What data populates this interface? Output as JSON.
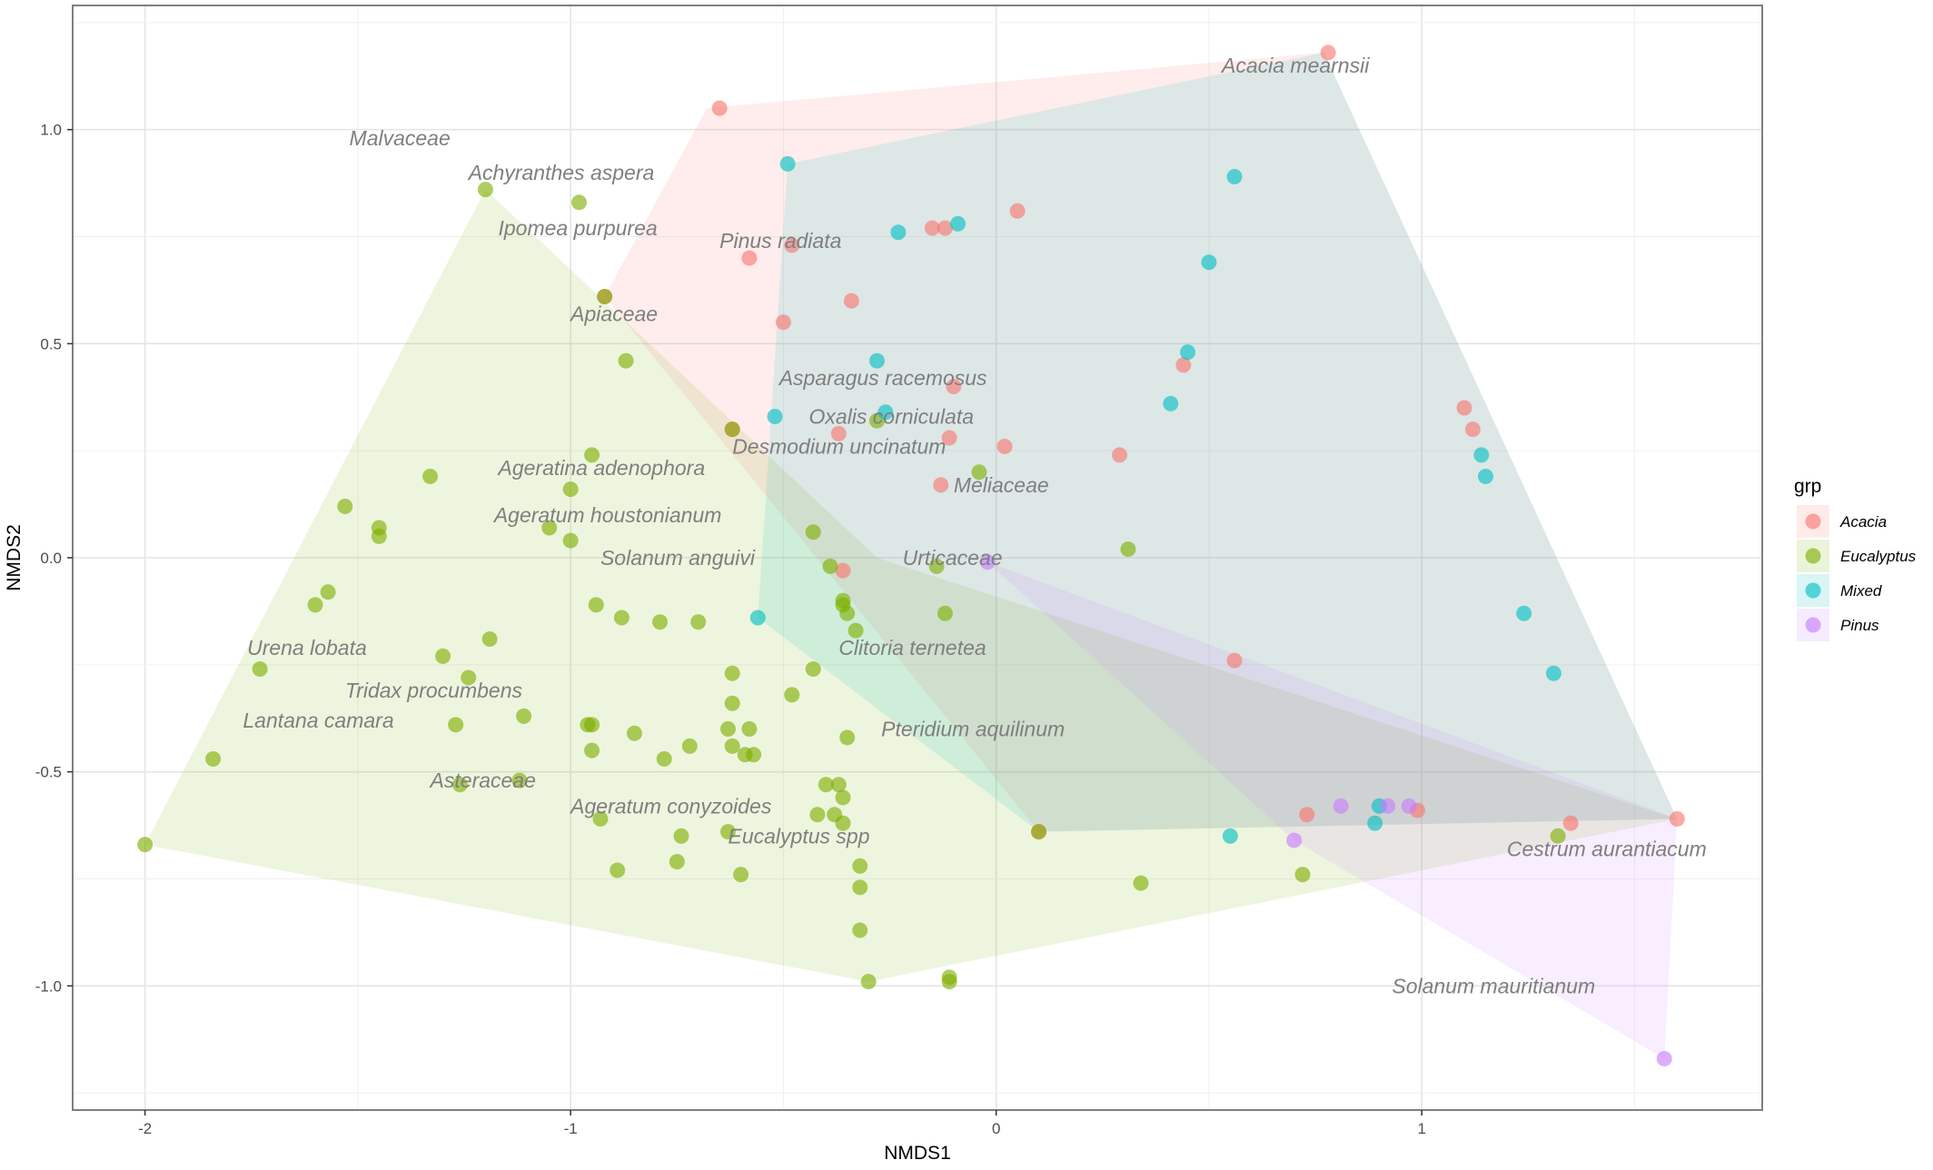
{
  "chart_data": {
    "type": "scatter",
    "xlabel": "NMDS1",
    "ylabel": "NMDS2",
    "xlim": [
      -2.17,
      1.8
    ],
    "ylim": [
      -1.29,
      1.29
    ],
    "x_ticks": [
      -2,
      -1,
      0,
      1
    ],
    "x_tick_labels": [
      "-2",
      "-1",
      "0",
      "1"
    ],
    "y_ticks": [
      1.0,
      0.5,
      0.0,
      -0.5,
      -1.0
    ],
    "y_tick_labels": [
      "1.0",
      "0.5",
      "0.0",
      "-0.5",
      "-1.0"
    ],
    "grid": true,
    "legend": {
      "title": "grp",
      "position": "right",
      "entries": [
        "Acacia",
        "Eucalyptus",
        "Mixed",
        "Pinus"
      ]
    },
    "colors": {
      "Acacia": "#F8766D",
      "Eucalyptus": "#7CAE00",
      "Mixed": "#00BFC4",
      "Pinus": "#C77CFF"
    },
    "hulls": [
      {
        "name": "Eucalyptus",
        "points": [
          [
            -2.0,
            -0.67
          ],
          [
            -1.2,
            0.86
          ],
          [
            -0.28,
            0.0
          ],
          [
            1.6,
            -0.61
          ],
          [
            -0.3,
            -0.99
          ]
        ]
      },
      {
        "name": "Acacia",
        "points": [
          [
            -0.68,
            1.05
          ],
          [
            0.77,
            1.18
          ],
          [
            1.6,
            -0.61
          ],
          [
            0.1,
            -0.64
          ],
          [
            -0.92,
            0.61
          ]
        ]
      },
      {
        "name": "Mixed",
        "points": [
          [
            -0.49,
            0.92
          ],
          [
            0.77,
            1.18
          ],
          [
            1.6,
            -0.61
          ],
          [
            0.1,
            -0.64
          ],
          [
            -0.56,
            -0.14
          ]
        ]
      },
      {
        "name": "Pinus",
        "points": [
          [
            -0.02,
            -0.01
          ],
          [
            1.6,
            -0.61
          ],
          [
            1.57,
            -1.17
          ],
          [
            0.7,
            -0.66
          ]
        ]
      }
    ],
    "series": [
      {
        "name": "Acacia",
        "points": [
          [
            0.78,
            1.18
          ],
          [
            -0.65,
            1.05
          ],
          [
            -0.58,
            0.7
          ],
          [
            -0.48,
            0.73
          ],
          [
            0.05,
            0.81
          ],
          [
            -0.15,
            0.77
          ],
          [
            -0.12,
            0.77
          ],
          [
            -0.34,
            0.6
          ],
          [
            -0.5,
            0.55
          ],
          [
            0.44,
            0.45
          ],
          [
            -0.1,
            0.4
          ],
          [
            -0.37,
            0.29
          ],
          [
            -0.11,
            0.28
          ],
          [
            0.02,
            0.26
          ],
          [
            0.29,
            0.24
          ],
          [
            1.1,
            0.35
          ],
          [
            1.12,
            0.3
          ],
          [
            -0.13,
            0.17
          ],
          [
            -0.36,
            -0.03
          ],
          [
            0.56,
            -0.24
          ],
          [
            0.73,
            -0.6
          ],
          [
            0.99,
            -0.59
          ],
          [
            1.35,
            -0.62
          ],
          [
            1.6,
            -0.61
          ],
          [
            0.1,
            -0.64
          ],
          [
            -0.62,
            0.3
          ],
          [
            -0.92,
            0.61
          ]
        ]
      },
      {
        "name": "Eucalyptus",
        "points": [
          [
            -1.2,
            0.86
          ],
          [
            -0.98,
            0.83
          ],
          [
            -0.92,
            0.61
          ],
          [
            -0.87,
            0.46
          ],
          [
            -0.95,
            0.24
          ],
          [
            -1.33,
            0.19
          ],
          [
            -1.0,
            0.16
          ],
          [
            -1.53,
            0.12
          ],
          [
            -1.45,
            0.07
          ],
          [
            -1.45,
            0.05
          ],
          [
            -1.05,
            0.07
          ],
          [
            -1.0,
            0.04
          ],
          [
            -0.62,
            0.3
          ],
          [
            -0.28,
            0.32
          ],
          [
            -0.04,
            0.2
          ],
          [
            -0.43,
            0.06
          ],
          [
            -0.39,
            -0.02
          ],
          [
            -0.14,
            -0.02
          ],
          [
            0.31,
            0.02
          ],
          [
            -1.57,
            -0.08
          ],
          [
            -1.6,
            -0.11
          ],
          [
            -0.94,
            -0.11
          ],
          [
            -0.88,
            -0.14
          ],
          [
            -0.79,
            -0.15
          ],
          [
            -0.7,
            -0.15
          ],
          [
            -0.36,
            -0.1
          ],
          [
            -0.36,
            -0.11
          ],
          [
            -0.35,
            -0.13
          ],
          [
            -0.12,
            -0.13
          ],
          [
            -0.33,
            -0.17
          ],
          [
            -1.19,
            -0.19
          ],
          [
            -1.3,
            -0.23
          ],
          [
            -1.73,
            -0.26
          ],
          [
            -1.24,
            -0.28
          ],
          [
            -0.62,
            -0.27
          ],
          [
            -0.43,
            -0.26
          ],
          [
            -0.48,
            -0.32
          ],
          [
            -0.62,
            -0.34
          ],
          [
            -1.11,
            -0.37
          ],
          [
            -1.27,
            -0.39
          ],
          [
            -0.96,
            -0.39
          ],
          [
            -0.95,
            -0.39
          ],
          [
            -0.85,
            -0.41
          ],
          [
            -0.58,
            -0.4
          ],
          [
            -0.63,
            -0.4
          ],
          [
            -0.72,
            -0.44
          ],
          [
            -0.78,
            -0.47
          ],
          [
            -0.95,
            -0.45
          ],
          [
            -0.57,
            -0.46
          ],
          [
            -0.59,
            -0.46
          ],
          [
            -0.62,
            -0.44
          ],
          [
            -0.35,
            -0.42
          ],
          [
            -1.84,
            -0.47
          ],
          [
            -1.12,
            -0.52
          ],
          [
            -1.26,
            -0.53
          ],
          [
            -0.4,
            -0.53
          ],
          [
            -0.37,
            -0.53
          ],
          [
            -0.36,
            -0.56
          ],
          [
            -0.42,
            -0.6
          ],
          [
            -0.38,
            -0.6
          ],
          [
            -0.36,
            -0.62
          ],
          [
            -0.93,
            -0.61
          ],
          [
            -0.63,
            -0.64
          ],
          [
            -0.74,
            -0.65
          ],
          [
            -0.32,
            -0.72
          ],
          [
            -0.89,
            -0.73
          ],
          [
            -0.75,
            -0.71
          ],
          [
            -0.6,
            -0.74
          ],
          [
            -0.32,
            -0.77
          ],
          [
            -0.32,
            -0.87
          ],
          [
            -0.3,
            -0.99
          ],
          [
            -0.11,
            -0.98
          ],
          [
            -0.11,
            -0.99
          ],
          [
            -2.0,
            -0.67
          ],
          [
            0.1,
            -0.64
          ],
          [
            0.34,
            -0.76
          ],
          [
            0.72,
            -0.74
          ],
          [
            1.32,
            -0.65
          ]
        ]
      },
      {
        "name": "Mixed",
        "points": [
          [
            -0.49,
            0.92
          ],
          [
            0.56,
            0.89
          ],
          [
            -0.23,
            0.76
          ],
          [
            -0.09,
            0.78
          ],
          [
            0.5,
            0.69
          ],
          [
            -0.28,
            0.46
          ],
          [
            0.45,
            0.48
          ],
          [
            -0.52,
            0.33
          ],
          [
            -0.26,
            0.34
          ],
          [
            0.41,
            0.36
          ],
          [
            1.14,
            0.24
          ],
          [
            1.15,
            0.19
          ],
          [
            -0.56,
            -0.14
          ],
          [
            1.24,
            -0.13
          ],
          [
            1.31,
            -0.27
          ],
          [
            0.55,
            -0.65
          ],
          [
            0.89,
            -0.62
          ],
          [
            0.9,
            -0.58
          ]
        ]
      },
      {
        "name": "Pinus",
        "points": [
          [
            -0.02,
            -0.01
          ],
          [
            0.7,
            -0.66
          ],
          [
            0.81,
            -0.58
          ],
          [
            0.92,
            -0.58
          ],
          [
            0.97,
            -0.58
          ],
          [
            1.57,
            -1.17
          ]
        ]
      }
    ],
    "annotations": [
      {
        "text": "Acacia mearnsii",
        "x": 0.53,
        "y": 1.15
      },
      {
        "text": "Malvaceae",
        "x": -1.52,
        "y": 0.98
      },
      {
        "text": "Achyranthes aspera",
        "x": -1.24,
        "y": 0.9
      },
      {
        "text": "Ipomea purpurea",
        "x": -1.17,
        "y": 0.77
      },
      {
        "text": "Pinus radiata",
        "x": -0.65,
        "y": 0.74
      },
      {
        "text": "Apiaceae",
        "x": -1.0,
        "y": 0.57
      },
      {
        "text": "Asparagus racemosus",
        "x": -0.51,
        "y": 0.42
      },
      {
        "text": "Oxalis corniculata",
        "x": -0.44,
        "y": 0.33
      },
      {
        "text": "Desmodium uncinatum",
        "x": -0.62,
        "y": 0.26
      },
      {
        "text": "Meliaceae",
        "x": -0.1,
        "y": 0.17
      },
      {
        "text": "Ageratina adenophora",
        "x": -1.17,
        "y": 0.21
      },
      {
        "text": "Ageratum houstonianum",
        "x": -1.18,
        "y": 0.1
      },
      {
        "text": "Solanum anguivi",
        "x": -0.93,
        "y": 0.0
      },
      {
        "text": "Urticaceae",
        "x": -0.22,
        "y": 0.0
      },
      {
        "text": "Clitoria ternetea",
        "x": -0.37,
        "y": -0.21
      },
      {
        "text": "Urena lobata",
        "x": -1.76,
        "y": -0.21
      },
      {
        "text": "Tridax procumbens",
        "x": -1.53,
        "y": -0.31
      },
      {
        "text": "Lantana camara",
        "x": -1.77,
        "y": -0.38
      },
      {
        "text": "Pteridium aquilinum",
        "x": -0.27,
        "y": -0.4
      },
      {
        "text": "Asteraceae",
        "x": -1.33,
        "y": -0.52
      },
      {
        "text": "Ageratum conyzoides",
        "x": -1.0,
        "y": -0.58
      },
      {
        "text": "Eucalyptus spp",
        "x": -0.63,
        "y": -0.65
      },
      {
        "text": "Cestrum aurantiacum",
        "x": 1.2,
        "y": -0.68
      },
      {
        "text": "Solanum mauritianum",
        "x": 0.93,
        "y": -1.0
      }
    ]
  }
}
